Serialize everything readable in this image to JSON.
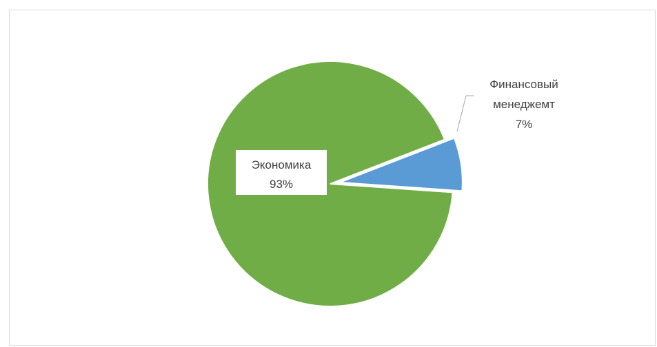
{
  "chart_data": {
    "type": "pie",
    "title": "",
    "slices": [
      {
        "name": "Экономика",
        "value": 93,
        "percent_label": "93%",
        "color": "#70AD47",
        "exploded": false
      },
      {
        "name": "Финансовый менеджемт",
        "name_lines": [
          "Финансовый",
          "менеджемт"
        ],
        "value": 7,
        "percent_label": "7%",
        "color": "#5B9BD5",
        "exploded": true
      }
    ],
    "label_style": "category-and-percent",
    "leader_line_color": "#a6a6a6"
  }
}
